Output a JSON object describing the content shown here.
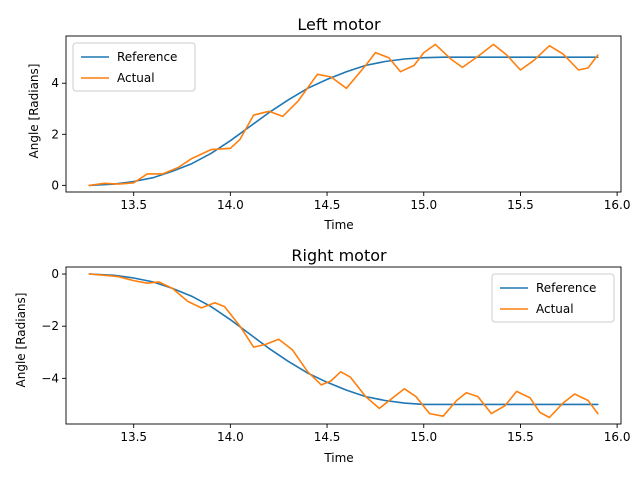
{
  "chart_data": [
    {
      "type": "line",
      "title": "Left motor",
      "xlabel": "Time",
      "ylabel": "Angle [Radians]",
      "xlim": [
        13.15,
        16.02
      ],
      "ylim": [
        -0.26,
        5.85
      ],
      "xticks": [
        13.5,
        14.0,
        14.5,
        15.0,
        15.5,
        16.0
      ],
      "xtick_labels": [
        "13.5",
        "14.0",
        "14.5",
        "15.0",
        "15.5",
        "16.0"
      ],
      "yticks": [
        0,
        2,
        4
      ],
      "ytick_labels": [
        "0",
        "2",
        "4"
      ],
      "legend_position": "upper left",
      "grid": false,
      "series": [
        {
          "name": "Reference",
          "color": "#1f77b4",
          "x": [
            13.27,
            13.4,
            13.5,
            13.6,
            13.7,
            13.8,
            13.9,
            14.0,
            14.1,
            14.2,
            14.3,
            14.4,
            14.5,
            14.6,
            14.7,
            14.8,
            14.9,
            15.0,
            15.1,
            15.3,
            15.5,
            15.7,
            15.9
          ],
          "y": [
            0.0,
            0.05,
            0.15,
            0.3,
            0.55,
            0.85,
            1.25,
            1.75,
            2.3,
            2.85,
            3.35,
            3.8,
            4.15,
            4.45,
            4.7,
            4.85,
            4.95,
            5.0,
            5.02,
            5.02,
            5.02,
            5.02,
            5.02
          ]
        },
        {
          "name": "Actual",
          "color": "#ff7f0e",
          "x": [
            13.27,
            13.35,
            13.42,
            13.5,
            13.57,
            13.65,
            13.73,
            13.8,
            13.9,
            14.0,
            14.05,
            14.12,
            14.2,
            14.27,
            14.35,
            14.45,
            14.52,
            14.6,
            14.7,
            14.75,
            14.82,
            14.88,
            14.95,
            15.0,
            15.06,
            15.14,
            15.2,
            15.28,
            15.36,
            15.43,
            15.5,
            15.57,
            15.65,
            15.72,
            15.8,
            15.85,
            15.9
          ],
          "y": [
            0.0,
            0.08,
            0.05,
            0.1,
            0.45,
            0.45,
            0.7,
            1.05,
            1.4,
            1.45,
            1.8,
            2.75,
            2.9,
            2.7,
            3.3,
            4.35,
            4.25,
            3.8,
            4.7,
            5.2,
            5.0,
            4.45,
            4.7,
            5.2,
            5.52,
            4.95,
            4.62,
            5.05,
            5.52,
            5.1,
            4.52,
            4.9,
            5.47,
            5.15,
            4.52,
            4.6,
            5.1
          ]
        }
      ]
    },
    {
      "type": "line",
      "title": "Right motor",
      "xlabel": "Time",
      "ylabel": "Angle [Radians]",
      "xlim": [
        13.15,
        16.02
      ],
      "ylim": [
        -5.75,
        0.27
      ],
      "xticks": [
        13.5,
        14.0,
        14.5,
        15.0,
        15.5,
        16.0
      ],
      "xtick_labels": [
        "13.5",
        "14.0",
        "14.5",
        "15.0",
        "15.5",
        "16.0"
      ],
      "yticks": [
        0,
        -2,
        -4
      ],
      "ytick_labels": [
        "0",
        "−2",
        "−4"
      ],
      "legend_position": "upper right",
      "grid": false,
      "series": [
        {
          "name": "Reference",
          "color": "#1f77b4",
          "x": [
            13.27,
            13.4,
            13.5,
            13.6,
            13.7,
            13.8,
            13.9,
            14.0,
            14.1,
            14.2,
            14.3,
            14.4,
            14.5,
            14.6,
            14.7,
            14.8,
            14.9,
            15.0,
            15.1,
            15.3,
            15.5,
            15.7,
            15.9
          ],
          "y": [
            0.0,
            -0.05,
            -0.15,
            -0.3,
            -0.55,
            -0.85,
            -1.25,
            -1.75,
            -2.3,
            -2.85,
            -3.35,
            -3.8,
            -4.15,
            -4.45,
            -4.7,
            -4.85,
            -4.95,
            -5.0,
            -5.0,
            -5.0,
            -5.0,
            -5.0,
            -5.0
          ]
        },
        {
          "name": "Actual",
          "color": "#ff7f0e",
          "x": [
            13.27,
            13.35,
            13.42,
            13.5,
            13.57,
            13.63,
            13.7,
            13.78,
            13.85,
            13.92,
            13.97,
            14.05,
            14.12,
            14.18,
            14.25,
            14.32,
            14.4,
            14.47,
            14.52,
            14.57,
            14.62,
            14.7,
            14.77,
            14.83,
            14.9,
            14.96,
            15.03,
            15.1,
            15.17,
            15.22,
            15.28,
            15.35,
            15.42,
            15.48,
            15.55,
            15.6,
            15.65,
            15.72,
            15.78,
            15.85,
            15.9
          ],
          "y": [
            0.0,
            -0.05,
            -0.1,
            -0.25,
            -0.35,
            -0.3,
            -0.55,
            -1.05,
            -1.3,
            -1.1,
            -1.25,
            -2.0,
            -2.8,
            -2.7,
            -2.5,
            -2.9,
            -3.75,
            -4.25,
            -4.1,
            -3.75,
            -3.95,
            -4.7,
            -5.15,
            -4.8,
            -4.4,
            -4.7,
            -5.35,
            -5.45,
            -4.85,
            -4.55,
            -4.7,
            -5.35,
            -5.05,
            -4.5,
            -4.75,
            -5.3,
            -5.5,
            -4.95,
            -4.6,
            -4.85,
            -5.35
          ]
        }
      ]
    }
  ]
}
